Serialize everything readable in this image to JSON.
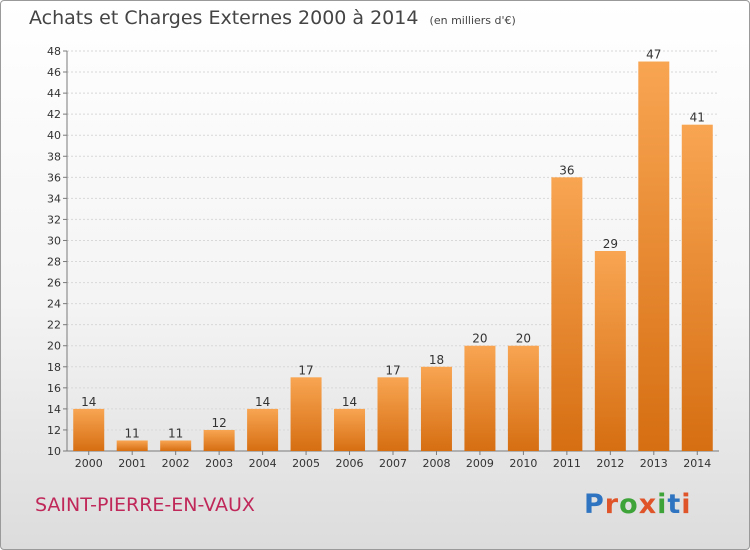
{
  "title": "Achats et Charges Externes 2000 à 2014",
  "subtitle": "(en milliers d'€)",
  "commune": "SAINT-PIERRE-EN-VAUX",
  "brand": {
    "text": "Proxiti",
    "colors": [
      "#2f74c0",
      "#e0542a",
      "#3ea43a",
      "#e0542a",
      "#3ea43a",
      "#2f74c0",
      "#e0542a"
    ]
  },
  "colors": {
    "bar_light": "#f8a552",
    "bar_dark": "#d66e12",
    "commune": "#c0285a",
    "axis": "#7a7a7a",
    "grid": "#d8d8d8"
  },
  "chart_data": {
    "type": "bar",
    "categories": [
      "2000",
      "2001",
      "2002",
      "2003",
      "2004",
      "2005",
      "2006",
      "2007",
      "2008",
      "2009",
      "2010",
      "2011",
      "2012",
      "2013",
      "2014"
    ],
    "values": [
      14,
      11,
      11,
      12,
      14,
      17,
      14,
      17,
      18,
      20,
      20,
      36,
      29,
      47,
      41
    ],
    "ylim": [
      10,
      48
    ],
    "yticks": [
      10,
      12,
      14,
      16,
      18,
      20,
      22,
      24,
      26,
      28,
      30,
      32,
      34,
      36,
      38,
      40,
      42,
      44,
      46,
      48
    ],
    "grid": true,
    "grid_axis": "y",
    "data_labels": true
  }
}
